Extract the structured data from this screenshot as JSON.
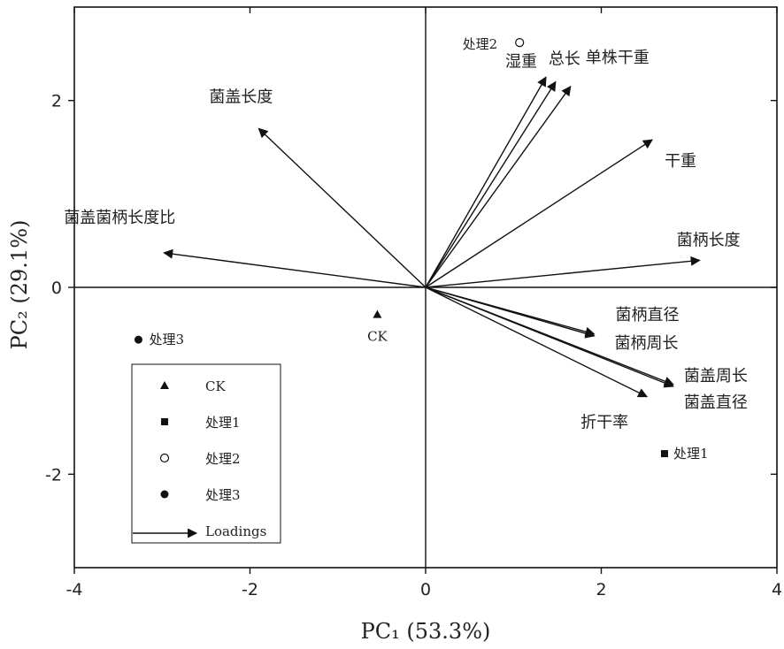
{
  "chart_data": {
    "type": "scatter",
    "xlabel": "PC₁ (53.3%)",
    "ylabel": "PC₂ (29.1%)",
    "xlim": [
      -4,
      4
    ],
    "ylim": [
      -3,
      3
    ],
    "xticks": [
      -4,
      -2,
      0,
      2,
      4
    ],
    "yticks": [
      -2,
      0,
      2
    ],
    "xtick_labels": [
      "-4",
      "-2",
      "0",
      "2",
      "4"
    ],
    "ytick_labels": [
      "-2",
      "0",
      "2"
    ],
    "grid": false,
    "points": [
      {
        "name": "CK",
        "x": -0.55,
        "y": -0.29,
        "marker": "triangle"
      },
      {
        "name": "处理1",
        "x": 2.72,
        "y": -1.78,
        "marker": "square"
      },
      {
        "name": "处理2",
        "x": 1.07,
        "y": 2.62,
        "marker": "open-circle"
      },
      {
        "name": "处理3",
        "x": -3.27,
        "y": -0.56,
        "marker": "filled-circle"
      }
    ],
    "loadings": [
      {
        "name": "菌盖长度",
        "x": -1.9,
        "y": 1.7
      },
      {
        "name": "菌盖菌柄长度比",
        "x": -2.98,
        "y": 0.37
      },
      {
        "name": "湿重",
        "x": 1.37,
        "y": 2.25
      },
      {
        "name": "总长",
        "x": 1.48,
        "y": 2.2
      },
      {
        "name": "单株干重",
        "x": 1.65,
        "y": 2.15
      },
      {
        "name": "干重",
        "x": 2.58,
        "y": 1.58
      },
      {
        "name": "菌柄长度",
        "x": 3.12,
        "y": 0.29
      },
      {
        "name": "菌柄直径",
        "x": 1.92,
        "y": -0.5
      },
      {
        "name": "菌柄周长",
        "x": 1.92,
        "y": -0.52
      },
      {
        "name": "菌盖周长",
        "x": 2.82,
        "y": -1.04
      },
      {
        "name": "菌盖直径",
        "x": 2.82,
        "y": -1.06
      },
      {
        "name": "折干率",
        "x": 2.52,
        "y": -1.17
      }
    ],
    "legend": {
      "position": "bottom-left",
      "entries": [
        {
          "label": "CK",
          "marker": "triangle"
        },
        {
          "label": "处理1",
          "marker": "square"
        },
        {
          "label": "处理2",
          "marker": "open-circle"
        },
        {
          "label": "处理3",
          "marker": "filled-circle"
        },
        {
          "label": "Loadings",
          "marker": "arrow"
        }
      ]
    }
  }
}
